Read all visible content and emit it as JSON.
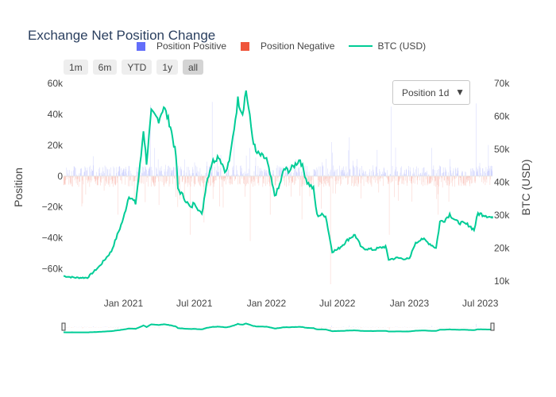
{
  "chart_data": {
    "type": "bar+line",
    "title": "Exchange Net Position Change",
    "legend": [
      {
        "name": "Position Positive",
        "color": "#636efa",
        "kind": "bar"
      },
      {
        "name": "Position Negative",
        "color": "#ef553b",
        "kind": "bar"
      },
      {
        "name": "BTC (USD)",
        "color": "#00cc96",
        "kind": "line"
      }
    ],
    "range_buttons": [
      "1m",
      "6m",
      "YTD",
      "1y",
      "all"
    ],
    "active_range": "all",
    "dropdown": {
      "selected": "Position 1d"
    },
    "x_ticks": [
      "Jan 2021",
      "Jul 2021",
      "Jan 2022",
      "Jul 2022",
      "Jan 2023",
      "Jul 2023"
    ],
    "x_range": [
      "2020-08-01",
      "2023-08-01"
    ],
    "y_left": {
      "title": "Position",
      "range": [
        -70000,
        60000
      ],
      "ticks": [
        60000,
        40000,
        20000,
        0,
        -20000,
        -40000,
        -60000
      ],
      "tick_labels": [
        "60k",
        "40k",
        "20k",
        "0",
        "−20k",
        "−40k",
        "−60k"
      ]
    },
    "y_right": {
      "title": "BTC (USD)",
      "range": [
        9000,
        70000
      ],
      "ticks": [
        70000,
        60000,
        50000,
        40000,
        30000,
        20000,
        10000
      ],
      "tick_labels": [
        "70k",
        "60k",
        "50k",
        "40k",
        "30k",
        "20k",
        "10k"
      ]
    },
    "btc_price": [
      [
        "2020-08-01",
        11500
      ],
      [
        "2020-09-01",
        11000
      ],
      [
        "2020-10-01",
        11000
      ],
      [
        "2020-11-01",
        14500
      ],
      [
        "2020-12-01",
        19000
      ],
      [
        "2021-01-01",
        29000
      ],
      [
        "2021-01-15",
        36000
      ],
      [
        "2021-02-01",
        33500
      ],
      [
        "2021-02-15",
        48000
      ],
      [
        "2021-02-21",
        56000
      ],
      [
        "2021-03-01",
        46000
      ],
      [
        "2021-03-13",
        61000
      ],
      [
        "2021-04-01",
        59000
      ],
      [
        "2021-04-14",
        63000
      ],
      [
        "2021-05-01",
        57000
      ],
      [
        "2021-05-15",
        48000
      ],
      [
        "2021-05-20",
        38000
      ],
      [
        "2021-06-01",
        36000
      ],
      [
        "2021-06-22",
        32000
      ],
      [
        "2021-07-01",
        34000
      ],
      [
        "2021-07-20",
        30000
      ],
      [
        "2021-08-01",
        40000
      ],
      [
        "2021-08-15",
        46000
      ],
      [
        "2021-09-01",
        48000
      ],
      [
        "2021-09-20",
        43000
      ],
      [
        "2021-10-01",
        48000
      ],
      [
        "2021-10-20",
        65000
      ],
      [
        "2021-11-01",
        61000
      ],
      [
        "2021-11-10",
        68000
      ],
      [
        "2021-11-26",
        54000
      ],
      [
        "2021-12-05",
        49000
      ],
      [
        "2022-01-01",
        47000
      ],
      [
        "2022-01-22",
        36000
      ],
      [
        "2022-02-01",
        38000
      ],
      [
        "2022-02-15",
        44000
      ],
      [
        "2022-03-01",
        43500
      ],
      [
        "2022-03-28",
        47000
      ],
      [
        "2022-04-15",
        40000
      ],
      [
        "2022-05-01",
        38000
      ],
      [
        "2022-05-10",
        30000
      ],
      [
        "2022-06-01",
        30000
      ],
      [
        "2022-06-13",
        22000
      ],
      [
        "2022-06-18",
        19000
      ],
      [
        "2022-07-01",
        19500
      ],
      [
        "2022-07-15",
        21000
      ],
      [
        "2022-08-01",
        23000
      ],
      [
        "2022-08-15",
        24000
      ],
      [
        "2022-09-01",
        20000
      ],
      [
        "2022-10-01",
        19500
      ],
      [
        "2022-11-01",
        20500
      ],
      [
        "2022-11-09",
        16500
      ],
      [
        "2022-12-01",
        17000
      ],
      [
        "2023-01-01",
        16600
      ],
      [
        "2023-01-14",
        21000
      ],
      [
        "2023-02-01",
        23000
      ],
      [
        "2023-03-10",
        20000
      ],
      [
        "2023-03-20",
        28000
      ],
      [
        "2023-04-01",
        28500
      ],
      [
        "2023-04-14",
        30300
      ],
      [
        "2023-05-01",
        28000
      ],
      [
        "2023-06-01",
        27000
      ],
      [
        "2023-06-15",
        25500
      ],
      [
        "2023-06-25",
        30500
      ],
      [
        "2023-07-15",
        30000
      ],
      [
        "2023-07-30",
        29200
      ],
      [
        "2023-08-01",
        29000
      ]
    ],
    "position_extremes": [
      [
        "2020-12-17",
        -25000
      ],
      [
        "2021-03-10",
        46000
      ],
      [
        "2021-05-19",
        -20000
      ],
      [
        "2021-06-20",
        -38000
      ],
      [
        "2021-07-25",
        -30000
      ],
      [
        "2021-08-15",
        48000
      ],
      [
        "2021-10-10",
        28000
      ],
      [
        "2021-11-20",
        -42000
      ],
      [
        "2022-01-10",
        -25000
      ],
      [
        "2022-04-01",
        -28000
      ],
      [
        "2022-06-13",
        -70000
      ],
      [
        "2022-06-16",
        22000
      ],
      [
        "2022-11-10",
        -38000
      ],
      [
        "2022-11-15",
        45000
      ],
      [
        "2023-03-15",
        -25000
      ],
      [
        "2023-06-20",
        47000
      ]
    ],
    "rangeslider": true
  }
}
